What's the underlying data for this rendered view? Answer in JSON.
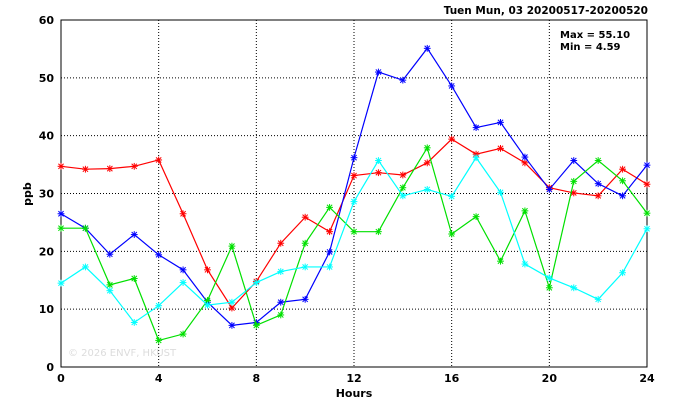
{
  "chart_data": {
    "type": "line",
    "title": "Tuen Mun, 03 20200517-20200520",
    "xlabel": "Hours",
    "ylabel": "ppb",
    "xlim": [
      0,
      24
    ],
    "ylim": [
      0,
      60
    ],
    "xticks": [
      0,
      4,
      8,
      12,
      16,
      20,
      24
    ],
    "yticks": [
      0,
      10,
      20,
      30,
      40,
      50,
      60
    ],
    "grid": true,
    "stats": {
      "max_label": "Max = 55.10",
      "min_label": "Min =  4.59"
    },
    "watermark": "© 2026  ENVF, HKUST",
    "x": [
      0,
      1,
      2,
      3,
      4,
      5,
      6,
      7,
      8,
      9,
      10,
      11,
      12,
      13,
      14,
      15,
      16,
      17,
      18,
      19,
      20,
      21,
      22,
      23,
      24
    ],
    "series": [
      {
        "color": "#ff0000",
        "values": [
          34.7,
          34.2,
          34.3,
          34.7,
          35.8,
          26.5,
          16.8,
          10.2,
          14.8,
          21.4,
          25.9,
          23.4,
          33.1,
          33.6,
          33.2,
          35.3,
          39.4,
          36.8,
          37.8,
          35.3,
          31.0,
          30.1,
          29.6,
          34.2,
          31.6
        ]
      },
      {
        "color": "#0000ff",
        "values": [
          26.5,
          24.0,
          19.5,
          22.9,
          19.4,
          16.8,
          11.2,
          7.2,
          7.7,
          11.2,
          11.7,
          19.9,
          36.2,
          51.0,
          49.6,
          55.1,
          48.6,
          41.4,
          42.3,
          36.3,
          30.7,
          35.7,
          31.7,
          29.6,
          34.9
        ]
      },
      {
        "color": "#00e000",
        "values": [
          24.0,
          24.0,
          14.2,
          15.3,
          4.6,
          5.7,
          11.5,
          20.9,
          7.2,
          9.0,
          21.4,
          27.6,
          23.4,
          23.4,
          31.0,
          37.9,
          23.0,
          26.0,
          18.3,
          27.0,
          13.7,
          32.1,
          35.7,
          32.2,
          26.6
        ]
      },
      {
        "color": "#00ffff",
        "values": [
          14.5,
          17.3,
          13.2,
          7.7,
          10.6,
          14.6,
          10.7,
          11.2,
          14.6,
          16.5,
          17.3,
          17.3,
          28.6,
          35.7,
          29.6,
          30.7,
          29.5,
          36.2,
          30.2,
          17.8,
          15.4,
          13.7,
          11.7,
          16.3,
          23.9
        ]
      }
    ]
  }
}
